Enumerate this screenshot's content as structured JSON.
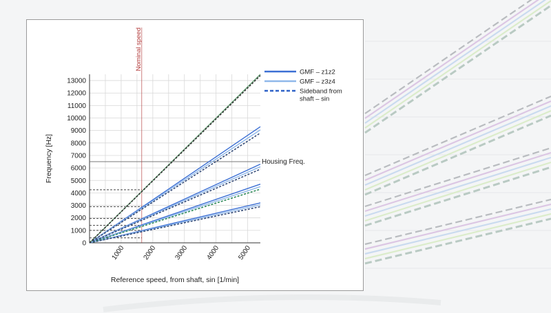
{
  "chart_data": {
    "type": "line",
    "title": "",
    "xlabel": "Reference speed, from shaft, sin [1/min]",
    "ylabel": "Frequency [Hz]",
    "xlim": [
      0,
      5400
    ],
    "ylim": [
      0,
      13500
    ],
    "xticks": [
      1000,
      2000,
      3000,
      4000,
      5000
    ],
    "yticks": [
      0,
      1000,
      2000,
      3000,
      4000,
      5000,
      6000,
      7000,
      8000,
      9000,
      10000,
      11000,
      12000,
      13000
    ],
    "grid": true,
    "legend_position": "top-right outside",
    "legend": [
      {
        "label": "GMF – z1z2",
        "style": "solid",
        "color": "#3b6fd4"
      },
      {
        "label": "GMF – z3z4",
        "style": "solid",
        "color": "#8fb8ea"
      },
      {
        "label": "Sideband from shaft – sin",
        "style": "dashed",
        "color": "#2f62c8"
      }
    ],
    "series": [
      {
        "style": "solid",
        "color": "#3b6fd4",
        "x": [
          0,
          5400
        ],
        "y": [
          0,
          3200
        ]
      },
      {
        "style": "solid",
        "color": "#8fb8ea",
        "x": [
          0,
          5400
        ],
        "y": [
          0,
          3050
        ]
      },
      {
        "style": "dashed",
        "color": "#334a77",
        "x": [
          0,
          5400
        ],
        "y": [
          0,
          2900
        ]
      },
      {
        "style": "solid",
        "color": "#3b6fd4",
        "x": [
          0,
          5400
        ],
        "y": [
          0,
          4700
        ]
      },
      {
        "style": "solid",
        "color": "#8fb8ea",
        "x": [
          0,
          5400
        ],
        "y": [
          0,
          4500
        ]
      },
      {
        "style": "dashed",
        "color": "#2f8a5a",
        "x": [
          0,
          5400
        ],
        "y": [
          0,
          4300
        ]
      },
      {
        "style": "solid",
        "color": "#3b6fd4",
        "x": [
          0,
          5400
        ],
        "y": [
          0,
          6300
        ]
      },
      {
        "style": "solid",
        "color": "#8fb8ea",
        "x": [
          0,
          5400
        ],
        "y": [
          0,
          6100
        ]
      },
      {
        "style": "dashed",
        "color": "#334a77",
        "x": [
          0,
          5400
        ],
        "y": [
          0,
          5900
        ]
      },
      {
        "style": "solid",
        "color": "#3b6fd4",
        "x": [
          0,
          5400
        ],
        "y": [
          0,
          9300
        ]
      },
      {
        "style": "solid",
        "color": "#8fb8ea",
        "x": [
          0,
          5400
        ],
        "y": [
          0,
          9050
        ]
      },
      {
        "style": "dashed",
        "color": "#334a77",
        "x": [
          0,
          5400
        ],
        "y": [
          0,
          8800
        ]
      },
      {
        "style": "solid",
        "color": "#6aa47a",
        "x": [
          0,
          5400
        ],
        "y": [
          0,
          13500
        ]
      },
      {
        "style": "dashed",
        "color": "#333333",
        "x": [
          0,
          5400
        ],
        "y": [
          0,
          13400
        ]
      }
    ],
    "annotations": [
      {
        "type": "vline",
        "x": 1650,
        "label": "Nominal speed",
        "color": "#b23a3a"
      },
      {
        "type": "hline",
        "y": 6500,
        "label": "Housing Freq.",
        "color": "#777777"
      }
    ],
    "reference_hlines": [
      {
        "y": 400,
        "x_to": 1650
      },
      {
        "y": 1000,
        "x_to": 1650
      },
      {
        "y": 1400,
        "x_to": 1650
      },
      {
        "y": 1950,
        "x_to": 1650
      },
      {
        "y": 2900,
        "x_to": 1650
      },
      {
        "y": 4250,
        "x_to": 1650
      }
    ]
  },
  "colors": {
    "grid": "#d8d8d8",
    "axis": "#333333",
    "nominal": "#b23a3a",
    "housing": "#777777",
    "hline": "#444444"
  }
}
